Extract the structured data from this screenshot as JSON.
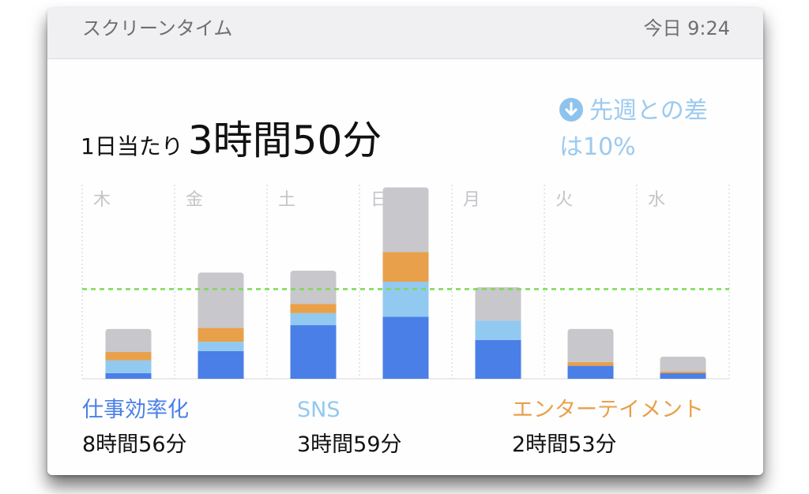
{
  "header": {
    "title": "スクリーンタイム",
    "time": "今日 9:24"
  },
  "summary": {
    "label": "1日当たり",
    "value": "3時間50分"
  },
  "comparison": {
    "text": "先週との差は10%",
    "line1": "先週との差",
    "line2": "は10%",
    "icon": "arrow-down-circle-icon"
  },
  "legend": [
    {
      "name": "仕事効率化",
      "time": "8時間56分",
      "color": "#4a7fe8"
    },
    {
      "name": "SNS",
      "time": "3時間59分",
      "color": "#92c9f0"
    },
    {
      "name": "エンターテイメント",
      "time": "2時間53分",
      "color": "#e8a04a"
    }
  ],
  "chart_data": {
    "type": "bar",
    "stacked": true,
    "categories": [
      "木",
      "金",
      "土",
      "日",
      "月",
      "火",
      "水"
    ],
    "series": [
      {
        "name": "仕事効率化",
        "color": "#4a7fe8",
        "values": [
          6,
          30,
          58,
          67,
          42,
          14,
          6
        ]
      },
      {
        "name": "SNS",
        "color": "#92c9f0",
        "values": [
          14,
          10,
          13,
          38,
          21,
          0,
          0
        ]
      },
      {
        "name": "エンターテイメント",
        "color": "#e8a04a",
        "values": [
          9,
          15,
          10,
          32,
          0,
          4,
          2
        ]
      },
      {
        "color": "#c8c7cc",
        "values": [
          25,
          60,
          36,
          70,
          36,
          36,
          16
        ]
      }
    ],
    "average": 97,
    "average_color": "#7ed957",
    "ymax": 210,
    "grid": "vertical-dotted"
  }
}
